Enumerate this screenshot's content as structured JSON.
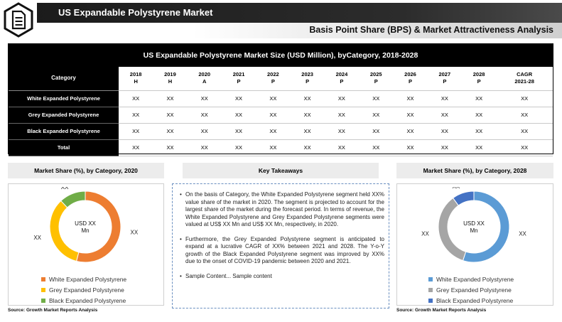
{
  "header": {
    "title": "US Expandable Polystyrene Market",
    "subtitle": "Basis Point Share (BPS) & Market Attractiveness Analysis"
  },
  "table": {
    "title": "US Expandable Polystyrene Market Size (USD Million), byCategory, 2018-2028",
    "category_header": "Category",
    "columns": [
      {
        "year": "2018",
        "tag": "H"
      },
      {
        "year": "2019",
        "tag": "H"
      },
      {
        "year": "2020",
        "tag": "A"
      },
      {
        "year": "2021",
        "tag": "P"
      },
      {
        "year": "2022",
        "tag": "P"
      },
      {
        "year": "2023",
        "tag": "P"
      },
      {
        "year": "2024",
        "tag": "P"
      },
      {
        "year": "2025",
        "tag": "P"
      },
      {
        "year": "2026",
        "tag": "P"
      },
      {
        "year": "2027",
        "tag": "P"
      },
      {
        "year": "2028",
        "tag": "P"
      },
      {
        "year": "CAGR",
        "tag": "2021-28"
      }
    ],
    "rows": [
      {
        "label": "White Expanded Polystyrene",
        "cells": [
          "XX",
          "XX",
          "XX",
          "XX",
          "XX",
          "XX",
          "XX",
          "XX",
          "XX",
          "XX",
          "XX",
          "XX"
        ]
      },
      {
        "label": "Grey Expanded Polystyrene",
        "cells": [
          "XX",
          "XX",
          "XX",
          "XX",
          "XX",
          "XX",
          "XX",
          "XX",
          "XX",
          "XX",
          "XX",
          "XX"
        ]
      },
      {
        "label": "Black Expanded Polystyrene",
        "cells": [
          "XX",
          "XX",
          "XX",
          "XX",
          "XX",
          "XX",
          "XX",
          "XX",
          "XX",
          "XX",
          "XX",
          "XX"
        ]
      },
      {
        "label": "Total",
        "cells": [
          "XX",
          "XX",
          "XX",
          "XX",
          "XX",
          "XX",
          "XX",
          "XX",
          "XX",
          "XX",
          "XX",
          "XX"
        ]
      }
    ]
  },
  "left_panel": {
    "title": "Market Share (%), by Category, 2020",
    "source": "Source: Growth Market Reports Analysis"
  },
  "right_panel": {
    "title": "Market Share (%), by Category, 2028",
    "source": "Source: Growth Market Reports Analysis"
  },
  "key_takeaways": {
    "title": "Key Takeaways",
    "items": [
      "On the basis of Category, the White Expanded Polystyrene segment held XX% value share of the market in 2020. The segment is projected to account for the largest share of the market during the forecast period. In terms of revenue, the White Expanded Polystyrene and Grey Expanded Polystyrene segments were valued at US$ XX Mn and US$ XX Mn, respectively, in 2020.",
      "Furthermore, the Grey Expanded Polystyrene segment is anticipated to expand at a lucrative CAGR of XX% between 2021 and 2028. The Y-o-Y growth of the Black Expanded Polystyrene segment was improved by XX% due to the onset of COVID-19 pandemic between 2020 and 2021.",
      "Sample Content... Sample content"
    ]
  },
  "chart_data": [
    {
      "type": "pie",
      "title": "Market Share (%), by Category, 2020",
      "center_label": [
        "USD XX",
        "Mn"
      ],
      "series": [
        {
          "name": "White Expanded Polystyrene",
          "value": 54,
          "label": "XX",
          "color": "#ed7d31"
        },
        {
          "name": "Grey Expanded Polystyrene",
          "value": 34,
          "label": "XX",
          "color": "#ffc000"
        },
        {
          "name": "Black Expanded Polystyrene",
          "value": 12,
          "label": "XX",
          "color": "#70ad47"
        }
      ]
    },
    {
      "type": "pie",
      "title": "Market Share (%), by Category, 2028",
      "center_label": [
        "USD XX",
        "Mn"
      ],
      "series": [
        {
          "name": "White Expanded Polystyrene",
          "value": 55,
          "label": "XX",
          "color": "#5b9bd5"
        },
        {
          "name": "Grey Expanded Polystyrene",
          "value": 35,
          "label": "XX",
          "color": "#a5a5a5"
        },
        {
          "name": "Black Expanded Polystyrene",
          "value": 10,
          "label": "XX",
          "color": "#4472c4"
        }
      ]
    }
  ]
}
